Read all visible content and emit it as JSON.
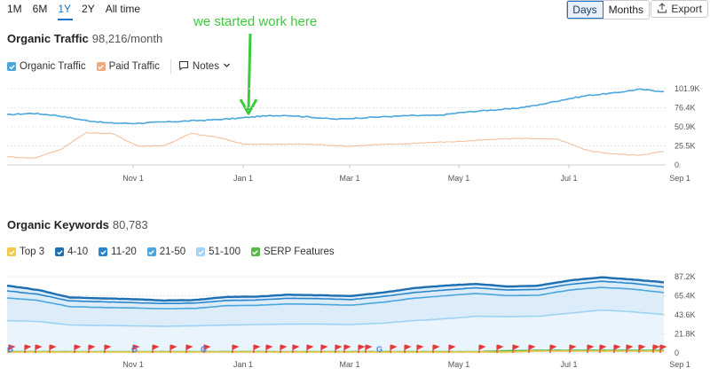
{
  "period_tabs": [
    {
      "label": "1M",
      "active": false
    },
    {
      "label": "6M",
      "active": false
    },
    {
      "label": "1Y",
      "active": true
    },
    {
      "label": "2Y",
      "active": false
    },
    {
      "label": "All time",
      "active": false
    }
  ],
  "granularity": {
    "days": "Days",
    "months": "Months",
    "selected": "Days"
  },
  "export_label": "Export",
  "annotation": "we started work here",
  "traffic": {
    "title": "Organic Traffic",
    "value": "98,216/month",
    "legend": {
      "organic": "Organic Traffic",
      "paid": "Paid Traffic",
      "notes": "Notes"
    }
  },
  "keywords": {
    "title": "Organic Keywords",
    "value": "80,783",
    "legend": [
      "Top 3",
      "4-10",
      "11-20",
      "21-50",
      "51-100",
      "SERP Features"
    ]
  },
  "colors": {
    "organic": "#4aa6dd",
    "paid": "#f2a97f",
    "top3": "#f2c94c",
    "k4_10": "#1d6fb2",
    "k11_20": "#2a86cc",
    "k21_50": "#4aa6dd",
    "k51_100": "#9fd2f3",
    "serp": "#5bb84a",
    "annotation": "#3cc93c",
    "flag": "#e23b3b"
  },
  "chart_data": [
    {
      "type": "line",
      "title": "Organic Traffic",
      "x_ticks": [
        "Nov 1",
        "Jan 1",
        "Mar 1",
        "May 1",
        "Jul 1",
        "Sep 1"
      ],
      "y_ticks": [
        "101.9K",
        "76.4K",
        "50.9K",
        "25.5K",
        "0"
      ],
      "ylim": [
        0,
        101900
      ],
      "series": [
        {
          "name": "Organic Traffic",
          "values": [
            67000,
            69000,
            66000,
            60000,
            56000,
            55500,
            57000,
            58500,
            60000,
            62000,
            65000,
            66500,
            64000,
            61000,
            63000,
            64500,
            66000,
            66000,
            70000,
            73000,
            75000,
            80000,
            87000,
            93000,
            96000,
            101000,
            98216
          ]
        },
        {
          "name": "Paid Traffic",
          "values": [
            11000,
            9000,
            20000,
            43000,
            42000,
            25000,
            26000,
            42000,
            37000,
            28000,
            27500,
            28000,
            27000,
            25000,
            27000,
            28000,
            30000,
            31000,
            33000,
            35000,
            35500,
            34000,
            20000,
            15000,
            13000,
            18000
          ]
        }
      ]
    },
    {
      "type": "area",
      "title": "Organic Keywords",
      "x_ticks": [
        "Nov 1",
        "Jan 1",
        "Mar 1",
        "May 1",
        "Jul 1",
        "Sep 1"
      ],
      "y_ticks": [
        "87.2K",
        "65.4K",
        "43.6K",
        "21.8K",
        "0"
      ],
      "ylim": [
        0,
        87200
      ],
      "series": [
        {
          "name": "Top 3",
          "values": [
            1000,
            1000,
            1000,
            1000,
            1000,
            1000,
            1000,
            1000,
            1000,
            1000,
            1000,
            1000,
            1000,
            1000,
            1000,
            1000,
            1000,
            2000,
            2000,
            2000,
            2000,
            2000
          ]
        },
        {
          "name": "4-10",
          "values": [
            77000,
            72000,
            63500,
            62500,
            61500,
            60000,
            60500,
            64000,
            64500,
            66500,
            66000,
            65000,
            69000,
            74000,
            77000,
            79000,
            76000,
            77000,
            83000,
            86500,
            84000,
            80783
          ]
        },
        {
          "name": "11-20",
          "values": [
            71000,
            67000,
            59500,
            58500,
            57500,
            56500,
            57000,
            60000,
            60500,
            62500,
            62000,
            61000,
            64500,
            69000,
            72000,
            74500,
            72000,
            72500,
            78500,
            82000,
            79500,
            75500
          ]
        },
        {
          "name": "21-50",
          "values": [
            63000,
            60000,
            53000,
            52000,
            51500,
            50500,
            51000,
            54000,
            54500,
            56000,
            55500,
            54500,
            58000,
            62500,
            65500,
            68000,
            65500,
            66000,
            72000,
            75000,
            73000,
            69000
          ]
        },
        {
          "name": "51-100",
          "values": [
            37000,
            36000,
            32000,
            31500,
            31000,
            30500,
            31000,
            32000,
            32500,
            33000,
            33000,
            32500,
            34000,
            37000,
            39000,
            42000,
            41500,
            42000,
            45500,
            49000,
            47000,
            44000
          ]
        },
        {
          "name": "SERP Features",
          "values": [
            1500,
            1500,
            1500,
            1500,
            1500,
            1500,
            1500,
            1500,
            1500,
            1500,
            1500,
            1500,
            1500,
            1500,
            1500,
            1500,
            2500,
            3000,
            3000,
            3000,
            3000,
            3000
          ]
        }
      ]
    }
  ]
}
